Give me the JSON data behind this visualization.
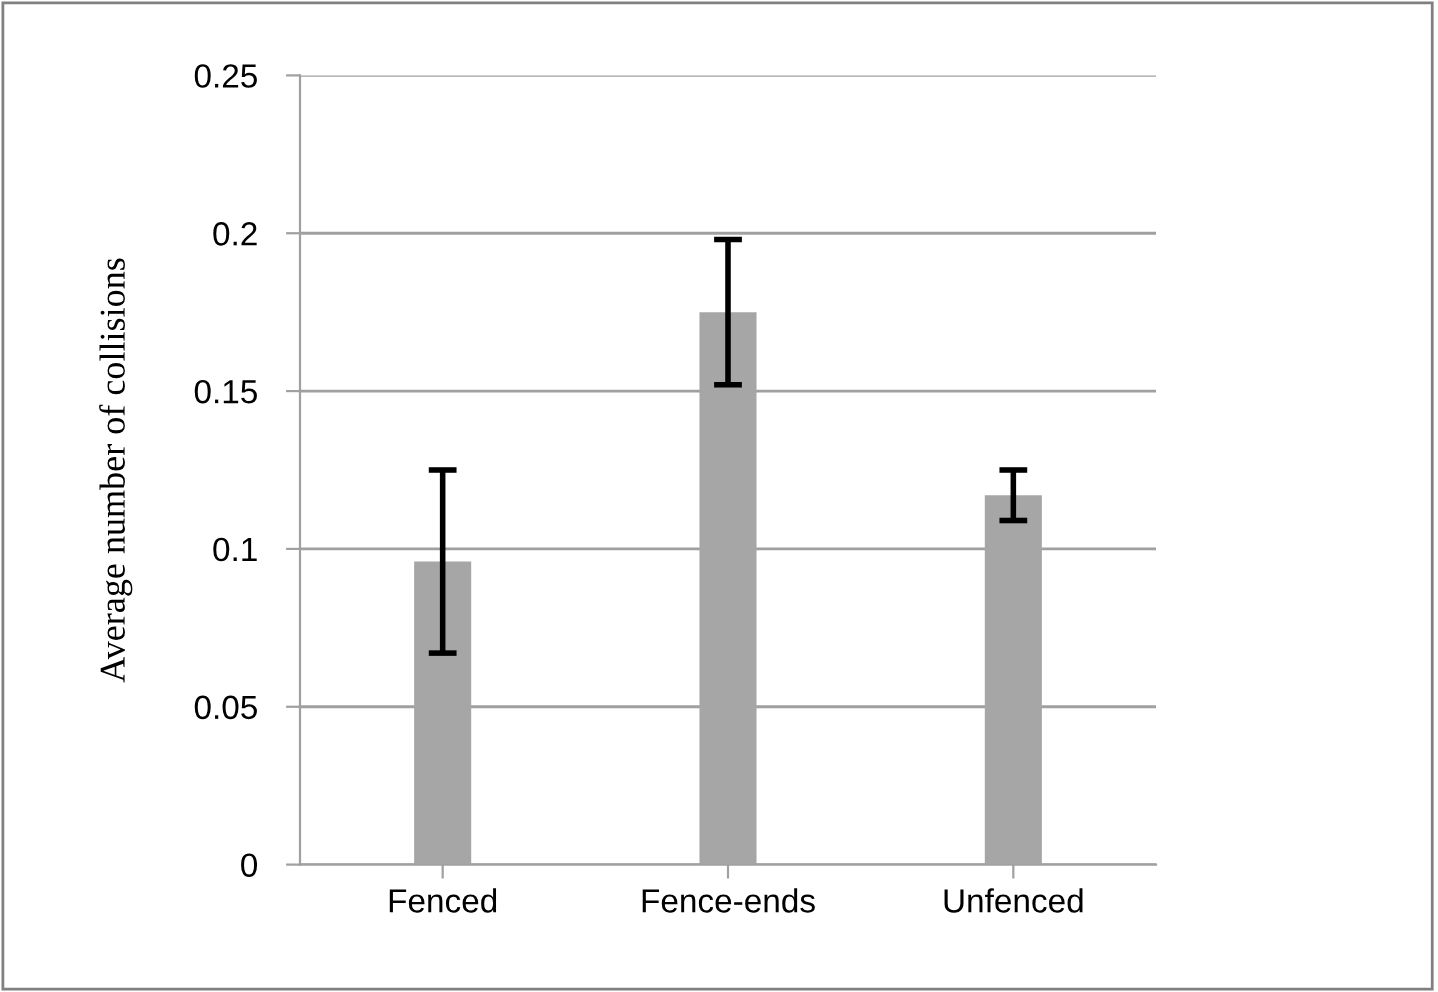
{
  "chart_data": {
    "type": "bar",
    "ylabel": "Average number of collisions",
    "categories": [
      "Fenced",
      "Fence-ends",
      "Unfenced"
    ],
    "values": [
      0.096,
      0.175,
      0.117
    ],
    "errors": [
      0.029,
      0.023,
      0.008
    ],
    "color": "#a6a6a6",
    "ylim": [
      0,
      0.25
    ],
    "yticks": [
      0,
      0.05,
      0.1,
      0.15,
      0.2,
      0.25
    ],
    "grid": "y",
    "legend": false
  }
}
